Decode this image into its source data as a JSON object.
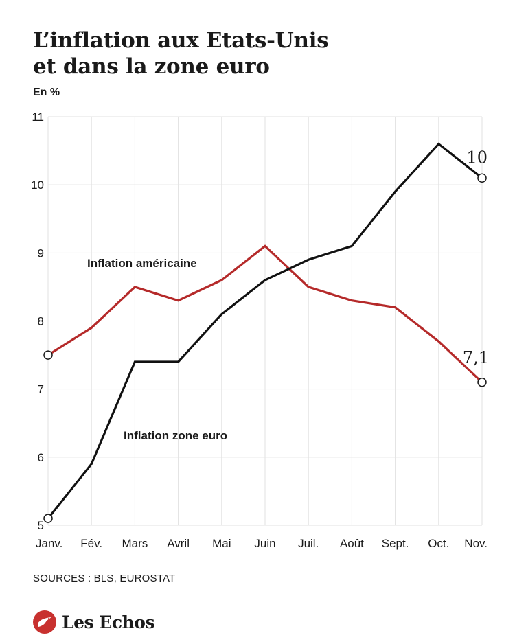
{
  "title": [
    "L’inflation aux Etats-Unis",
    "et dans la zone euro"
  ],
  "unit": "En %",
  "sources": "SOURCES : BLS, EUROSTAT",
  "brand": {
    "name": "Les Echos",
    "color": "#c8312f"
  },
  "chart_data": {
    "type": "line",
    "categories": [
      "Janv.",
      "Fév.",
      "Mars",
      "Avril",
      "Mai",
      "Juin",
      "Juil.",
      "Août",
      "Sept.",
      "Oct.",
      "Nov."
    ],
    "ylim": [
      5,
      11
    ],
    "yticks": [
      5,
      6,
      7,
      8,
      9,
      10,
      11
    ],
    "grid": true,
    "series": [
      {
        "name": "Inflation américaine",
        "color": "#b52a2a",
        "values": [
          7.5,
          7.9,
          8.5,
          8.3,
          8.6,
          9.1,
          8.5,
          8.3,
          8.2,
          7.7,
          7.1
        ],
        "end_label": "7,1"
      },
      {
        "name": "Inflation zone euro",
        "color": "#111111",
        "values": [
          5.1,
          5.9,
          7.4,
          7.4,
          8.1,
          8.6,
          8.9,
          9.1,
          9.9,
          10.6,
          10.1
        ],
        "end_label": "10"
      }
    ]
  }
}
